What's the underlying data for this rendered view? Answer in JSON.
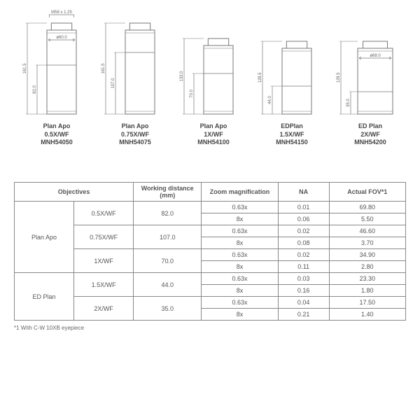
{
  "diagram": {
    "thread_label": "M58 x 1.25",
    "stroke": "#777",
    "lenses": [
      {
        "name": "Plan Apo",
        "mag": "0.5X/WF",
        "model": "MNH54050",
        "total_h": 130,
        "body_h": 70,
        "body_w": 42,
        "dim_total": "161.5",
        "dim_body": "82.0",
        "diameter": "ø60.0",
        "show_thread": true,
        "show_diameter": true
      },
      {
        "name": "Plan Apo",
        "mag": "0.75X/WF",
        "model": "MNH54075",
        "total_h": 130,
        "body_h": 88,
        "body_w": 42,
        "dim_total": "161.5",
        "dim_body": "107.0"
      },
      {
        "name": "Plan Apo",
        "mag": "1X/WF",
        "model": "MNH54100",
        "total_h": 108,
        "body_h": 58,
        "body_w": 42,
        "dim_total": "133.0",
        "dim_body": "70.0"
      },
      {
        "name": "EDPlan",
        "mag": "1.5X/WF",
        "model": "MNH54150",
        "total_h": 104,
        "body_h": 40,
        "body_w": 42,
        "dim_total": "128.5",
        "dim_body": "44.0"
      },
      {
        "name": "ED Plan",
        "mag": "2X/WF",
        "model": "MNH54200",
        "total_h": 104,
        "body_h": 32,
        "body_w": 50,
        "dim_total": "128.5",
        "dim_body": "35.0",
        "diameter": "ø68.0",
        "show_diameter": true
      }
    ]
  },
  "table": {
    "headers": [
      "Objectives",
      "Working distance (mm)",
      "Zoom magnification",
      "NA",
      "Actual FOV*1"
    ],
    "groups": [
      {
        "series": "Plan Apo",
        "rows": [
          {
            "objective": "0.5X/WF",
            "wd": "82.0",
            "sub": [
              {
                "zoom": "0.63x",
                "na": "0.01",
                "fov": "69.80"
              },
              {
                "zoom": "8x",
                "na": "0.06",
                "fov": "5.50"
              }
            ]
          },
          {
            "objective": "0.75X/WF",
            "wd": "107.0",
            "sub": [
              {
                "zoom": "0.63x",
                "na": "0.02",
                "fov": "46.60"
              },
              {
                "zoom": "8x",
                "na": "0.08",
                "fov": "3.70"
              }
            ]
          },
          {
            "objective": "1X/WF",
            "wd": "70.0",
            "sub": [
              {
                "zoom": "0.63x",
                "na": "0.02",
                "fov": "34.90"
              },
              {
                "zoom": "8x",
                "na": "0.11",
                "fov": "2.80"
              }
            ]
          }
        ]
      },
      {
        "series": "ED Plan",
        "rows": [
          {
            "objective": "1.5X/WF",
            "wd": "44.0",
            "sub": [
              {
                "zoom": "0.63x",
                "na": "0.03",
                "fov": "23.30"
              },
              {
                "zoom": "8x",
                "na": "0.16",
                "fov": "1.80"
              }
            ]
          },
          {
            "objective": "2X/WF",
            "wd": "35.0",
            "sub": [
              {
                "zoom": "0.63x",
                "na": "0.04",
                "fov": "17.50"
              },
              {
                "zoom": "8x",
                "na": "0.21",
                "fov": "1.40"
              }
            ]
          }
        ]
      }
    ],
    "footnote": "*1 With C-W 10XB eyepiece"
  }
}
